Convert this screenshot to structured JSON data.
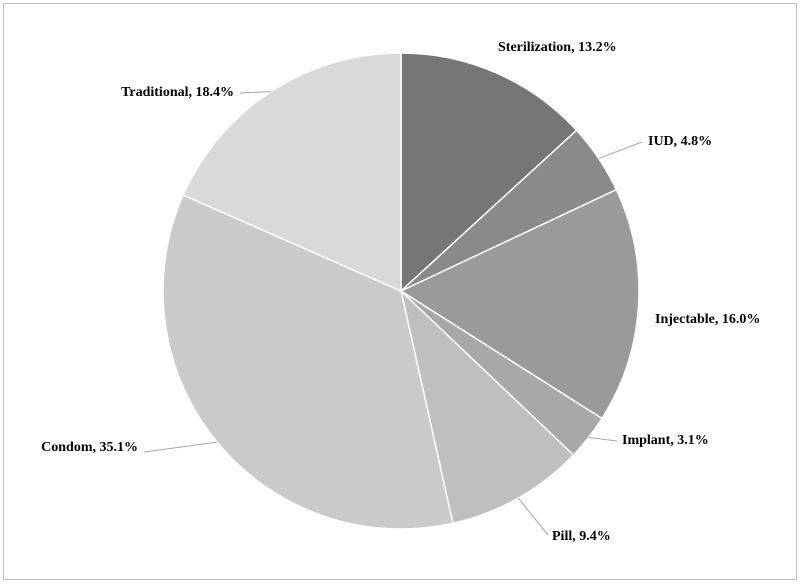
{
  "chart_data": {
    "type": "pie",
    "values": [
      13.2,
      4.8,
      16.0,
      3.1,
      9.4,
      35.1,
      18.4
    ],
    "value_labels": [
      "Sterilization, 13.2%",
      "IUD, 4.8%",
      "Injectable, 16.0%",
      "Implant, 3.1%",
      "Pill, 9.4%",
      "Condom, 35.1%",
      "Traditional, 18.4%"
    ],
    "colors": [
      "#767676",
      "#8a8a8a",
      "#9a9a9a",
      "#a8a8a8",
      "#bfbfbf",
      "#cacaca",
      "#d9d9d9"
    ]
  }
}
